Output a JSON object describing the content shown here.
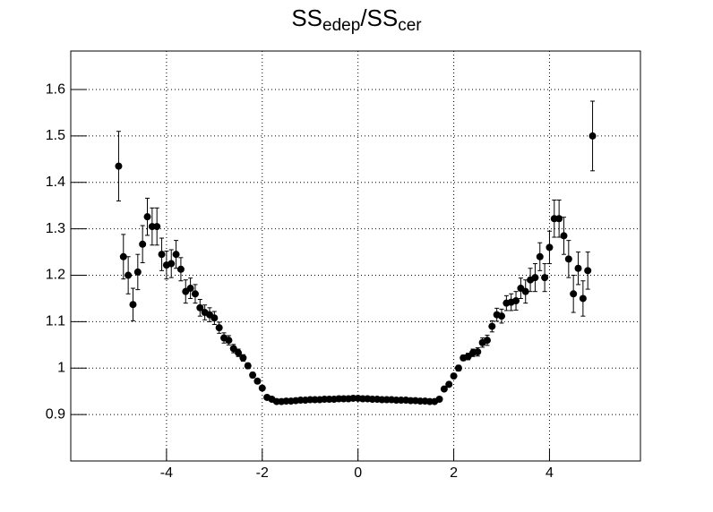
{
  "chart_data": {
    "type": "scatter",
    "title": [
      "SS",
      "edep",
      "/SS",
      "cer"
    ],
    "x": [
      -5,
      -4.9,
      -4.8,
      -4.7,
      -4.6,
      -4.5,
      -4.4,
      -4.3,
      -4.2,
      -4.1,
      -4,
      -3.9,
      -3.8,
      -3.7,
      -3.6,
      -3.5,
      -3.4,
      -3.3,
      -3.2,
      -3.1,
      -3,
      -2.9,
      -2.8,
      -2.7,
      -2.6,
      -2.5,
      -2.4,
      -2.3,
      -2.2,
      -2.1,
      -2,
      -1.9,
      -1.8,
      -1.7,
      -1.6,
      -1.5,
      -1.4,
      -1.3,
      -1.2,
      -1.1,
      -1,
      -0.9,
      -0.8,
      -0.7,
      -0.6,
      -0.5,
      -0.4,
      -0.3,
      -0.2,
      -0.1,
      0,
      0.1,
      0.2,
      0.3,
      0.4,
      0.5,
      0.6,
      0.7,
      0.8,
      0.9,
      1,
      1.1,
      1.2,
      1.3,
      1.4,
      1.5,
      1.6,
      1.7,
      1.8,
      1.9,
      2,
      2.1,
      2.2,
      2.3,
      2.4,
      2.5,
      2.6,
      2.7,
      2.8,
      2.9,
      3,
      3.1,
      3.2,
      3.3,
      3.4,
      3.5,
      3.6,
      3.7,
      3.8,
      3.9,
      4,
      4.1,
      4.2,
      4.3,
      4.4,
      4.5,
      4.6,
      4.7,
      4.8,
      4.9
    ],
    "values": [
      1.435,
      1.24,
      1.2,
      1.137,
      1.207,
      1.267,
      1.326,
      1.305,
      1.305,
      1.245,
      1.222,
      1.225,
      1.245,
      1.213,
      1.165,
      1.172,
      1.16,
      1.13,
      1.12,
      1.115,
      1.108,
      1.087,
      1.065,
      1.06,
      1.042,
      1.033,
      1.022,
      1.005,
      0.985,
      0.972,
      0.957,
      0.937,
      0.933,
      0.928,
      0.928,
      0.929,
      0.929,
      0.93,
      0.931,
      0.931,
      0.932,
      0.932,
      0.932,
      0.933,
      0.933,
      0.933,
      0.934,
      0.934,
      0.934,
      0.935,
      0.935,
      0.934,
      0.934,
      0.933,
      0.933,
      0.932,
      0.932,
      0.932,
      0.931,
      0.931,
      0.931,
      0.93,
      0.93,
      0.929,
      0.929,
      0.928,
      0.928,
      0.933,
      0.955,
      0.965,
      0.983,
      1.0,
      1.022,
      1.025,
      1.033,
      1.035,
      1.055,
      1.06,
      1.09,
      1.115,
      1.112,
      1.14,
      1.142,
      1.145,
      1.172,
      1.165,
      1.19,
      1.195,
      1.24,
      1.195,
      1.26,
      1.322,
      1.322,
      1.285,
      1.235,
      1.16,
      1.215,
      1.15,
      1.21,
      1.5
    ],
    "errors": [
      0.075,
      0.048,
      0.04,
      0.035,
      0.038,
      0.04,
      0.04,
      0.04,
      0.04,
      0.035,
      0.03,
      0.03,
      0.03,
      0.025,
      0.025,
      0.022,
      0.02,
      0.018,
      0.016,
      0.015,
      0.014,
      0.012,
      0.011,
      0.01,
      0.009,
      0.008,
      0.007,
      0.006,
      0.006,
      0.005,
      0.005,
      0.004,
      0.004,
      0.003,
      0.003,
      0.003,
      0.003,
      0.003,
      0.003,
      0.003,
      0.003,
      0.003,
      0.003,
      0.003,
      0.003,
      0.003,
      0.003,
      0.003,
      0.003,
      0.003,
      0.003,
      0.003,
      0.003,
      0.003,
      0.003,
      0.003,
      0.003,
      0.003,
      0.003,
      0.003,
      0.003,
      0.003,
      0.003,
      0.003,
      0.003,
      0.003,
      0.003,
      0.004,
      0.004,
      0.005,
      0.005,
      0.006,
      0.006,
      0.007,
      0.008,
      0.009,
      0.01,
      0.011,
      0.012,
      0.014,
      0.015,
      0.016,
      0.018,
      0.02,
      0.022,
      0.025,
      0.025,
      0.03,
      0.03,
      0.03,
      0.035,
      0.04,
      0.04,
      0.04,
      0.04,
      0.04,
      0.035,
      0.038,
      0.04,
      0.075
    ],
    "color": "#000000",
    "xlim": [
      -6,
      5.9
    ],
    "xticks": [
      -4,
      -2,
      0,
      2,
      4
    ],
    "ylim": [
      0.8,
      1.683
    ],
    "yticks": [
      0.9,
      1,
      1.1,
      1.2,
      1.3,
      1.4,
      1.5,
      1.6
    ],
    "grid": true
  }
}
